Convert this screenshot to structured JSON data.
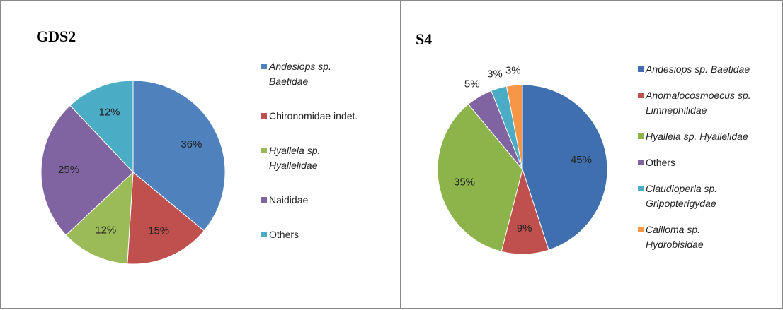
{
  "chart_data": [
    {
      "type": "pie",
      "title": "GDS2",
      "categories": [
        "Andesiops sp. Baetidae",
        "Chironomidae indet.",
        "Hyallela sp. Hyallelidae",
        "Naididae",
        "Others"
      ],
      "legend_italic": [
        true,
        false,
        true,
        false,
        false
      ],
      "values": [
        36,
        15,
        12,
        25,
        12
      ],
      "value_labels": [
        "36%",
        "15%",
        "12%",
        "25%",
        "12%"
      ],
      "colors": [
        "#4f81bd",
        "#c0504d",
        "#9bbb59",
        "#8064a2",
        "#4bacc6"
      ],
      "legend": "right"
    },
    {
      "type": "pie",
      "title": "S4",
      "categories": [
        "Andesiops sp.  Baetidae",
        "Anomalocosmoecus sp. Limnephilidae",
        "Hyallela sp. Hyallelidae",
        "Others",
        "Claudioperla sp. Gripopterigydae",
        "Cailloma sp. Hydrobisidae"
      ],
      "legend_italic": [
        true,
        true,
        true,
        false,
        true,
        true
      ],
      "values": [
        45,
        9,
        35,
        5,
        3,
        3
      ],
      "value_labels": [
        "45%",
        "9%",
        "35%",
        "5%",
        "3%",
        "3%"
      ],
      "colors": [
        "#3f6fae",
        "#c0504d",
        "#8db44b",
        "#8064a2",
        "#4bacc6",
        "#f79646"
      ],
      "legend": "right"
    }
  ]
}
